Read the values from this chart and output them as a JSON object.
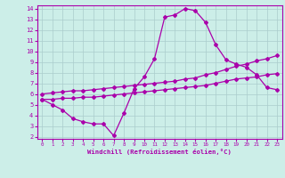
{
  "xlabel": "Windchill (Refroidissement éolien,°C)",
  "background_color": "#cceee8",
  "line_color": "#aa00aa",
  "grid_color": "#aacccc",
  "xlim": [
    -0.5,
    23.5
  ],
  "ylim": [
    1.8,
    14.3
  ],
  "xticks": [
    0,
    1,
    2,
    3,
    4,
    5,
    6,
    7,
    8,
    9,
    10,
    11,
    12,
    13,
    14,
    15,
    16,
    17,
    18,
    19,
    20,
    21,
    22,
    23
  ],
  "yticks": [
    2,
    3,
    4,
    5,
    6,
    7,
    8,
    9,
    10,
    11,
    12,
    13,
    14
  ],
  "line1_x": [
    0,
    1,
    2,
    3,
    4,
    5,
    6,
    7,
    8,
    9,
    10,
    11,
    12,
    13,
    14,
    15,
    16,
    17,
    18,
    19,
    20,
    21,
    22,
    23
  ],
  "line1_y": [
    5.5,
    5.0,
    4.5,
    3.7,
    3.4,
    3.2,
    3.2,
    2.1,
    4.2,
    6.5,
    7.6,
    9.3,
    13.2,
    13.4,
    14.0,
    13.8,
    12.7,
    10.6,
    9.2,
    8.8,
    8.5,
    7.8,
    6.6,
    6.4
  ],
  "line2_x": [
    0,
    1,
    2,
    3,
    4,
    5,
    6,
    7,
    8,
    9,
    10,
    11,
    12,
    13,
    14,
    15,
    16,
    17,
    18,
    19,
    20,
    21,
    22,
    23
  ],
  "line2_y": [
    6.0,
    6.1,
    6.2,
    6.3,
    6.3,
    6.4,
    6.5,
    6.6,
    6.7,
    6.8,
    6.9,
    7.0,
    7.1,
    7.2,
    7.4,
    7.5,
    7.8,
    8.0,
    8.3,
    8.6,
    8.8,
    9.1,
    9.3,
    9.6
  ],
  "line3_x": [
    0,
    1,
    2,
    3,
    4,
    5,
    6,
    7,
    8,
    9,
    10,
    11,
    12,
    13,
    14,
    15,
    16,
    17,
    18,
    19,
    20,
    21,
    22,
    23
  ],
  "line3_y": [
    5.5,
    5.5,
    5.6,
    5.6,
    5.7,
    5.7,
    5.8,
    5.9,
    6.0,
    6.1,
    6.2,
    6.3,
    6.4,
    6.5,
    6.6,
    6.7,
    6.8,
    7.0,
    7.2,
    7.4,
    7.5,
    7.6,
    7.8,
    7.9
  ],
  "linewidth": 0.9,
  "marker_size": 2.0
}
